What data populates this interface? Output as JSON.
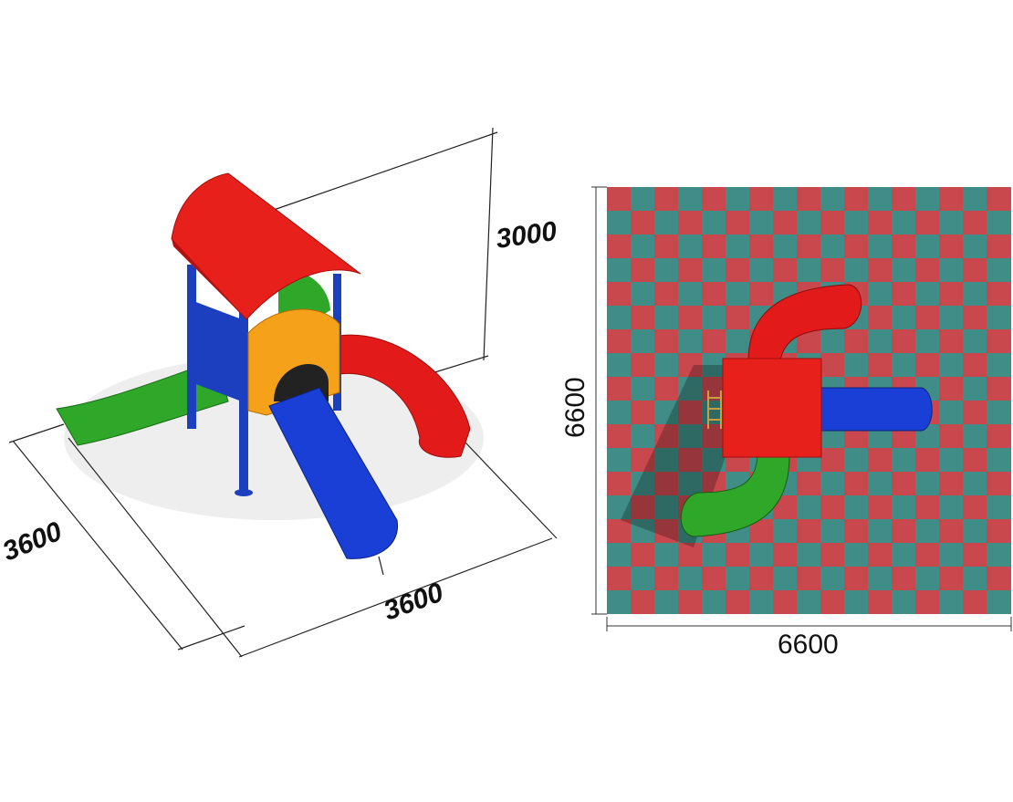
{
  "dimensions": {
    "iso_height": "3000",
    "iso_depth": "3600",
    "iso_width": "3600",
    "plan_height": "6600",
    "plan_width": "6600"
  },
  "colors": {
    "roof": "#e8201c",
    "posts": "#1b3fbf",
    "slide_blue": "#1a3fd6",
    "slide_green": "#2fa82a",
    "slide_red": "#e21a1a",
    "panel_orange": "#f5a21a",
    "tile_red": "#c9484e",
    "tile_teal": "#3f8d86"
  }
}
